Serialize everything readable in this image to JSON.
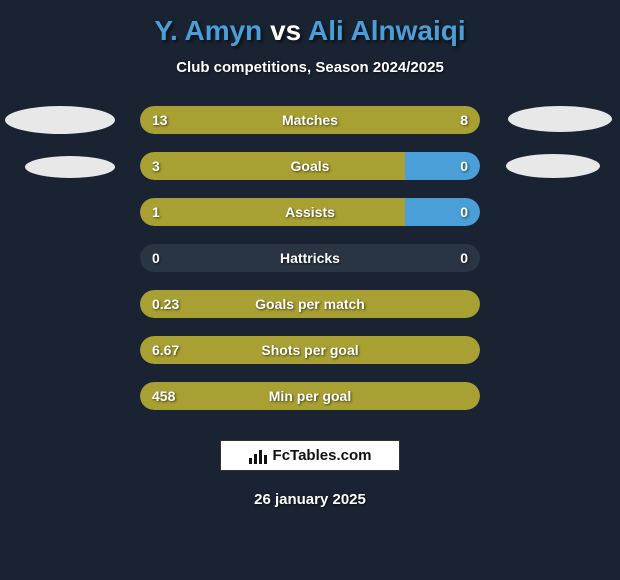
{
  "title": {
    "player1": "Y. Amyn",
    "vs": "vs",
    "player2": "Ali Alnwaiqi",
    "p1_color": "#4a9fd8",
    "vs_color": "#ffffff",
    "p2_color": "#4a9fd8"
  },
  "subtitle": "Club competitions, Season 2024/2025",
  "colors": {
    "background": "#1a2332",
    "bar_track": "#2a3544",
    "p1_bar": "#a8a032",
    "p2_bar": "#4a9fd8",
    "text": "#ffffff",
    "ellipse": "#e8e8e8"
  },
  "bar_container_width": 340,
  "stats": [
    {
      "label": "Matches",
      "left_val": "13",
      "right_val": "8",
      "left_pct": 62,
      "right_pct": 38,
      "right_color": "#a8a032"
    },
    {
      "label": "Goals",
      "left_val": "3",
      "right_val": "0",
      "left_pct": 78,
      "right_pct": 22,
      "right_color": "#4a9fd8"
    },
    {
      "label": "Assists",
      "left_val": "1",
      "right_val": "0",
      "left_pct": 78,
      "right_pct": 22,
      "right_color": "#4a9fd8"
    },
    {
      "label": "Hattricks",
      "left_val": "0",
      "right_val": "0",
      "left_pct": 0,
      "right_pct": 0,
      "right_color": "#4a9fd8"
    },
    {
      "label": "Goals per match",
      "left_val": "0.23",
      "right_val": "",
      "left_pct": 100,
      "right_pct": 0,
      "right_color": "#4a9fd8"
    },
    {
      "label": "Shots per goal",
      "left_val": "6.67",
      "right_val": "",
      "left_pct": 100,
      "right_pct": 0,
      "right_color": "#4a9fd8"
    },
    {
      "label": "Min per goal",
      "left_val": "458",
      "right_val": "",
      "left_pct": 100,
      "right_pct": 0,
      "right_color": "#4a9fd8"
    }
  ],
  "watermark": "FcTables.com",
  "date": "26 january 2025"
}
